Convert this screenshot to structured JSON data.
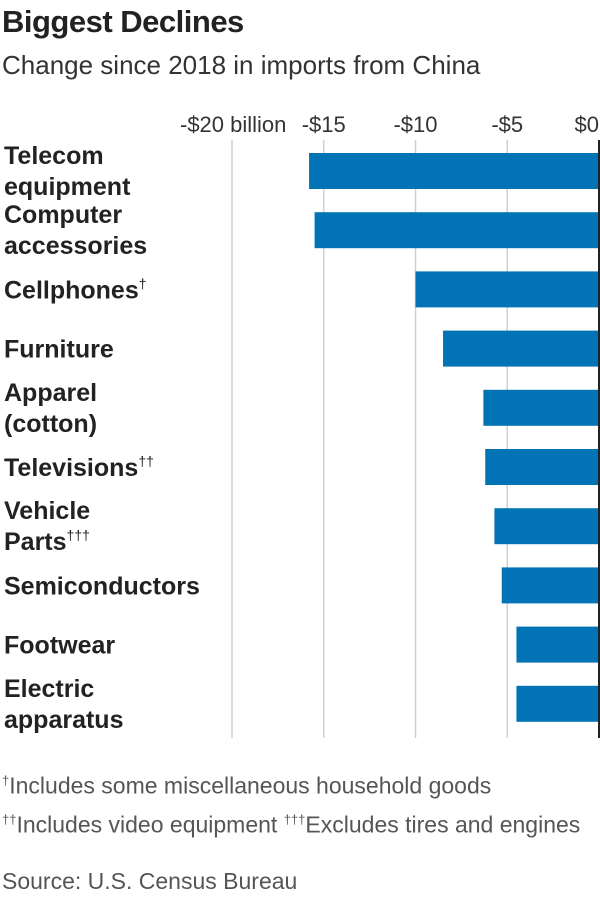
{
  "chart_data": {
    "type": "bar",
    "orientation": "horizontal",
    "title": "Biggest Declines",
    "subtitle": "Change since 2018 in imports from China",
    "categories": [
      {
        "lines": [
          "Telecom",
          "equipment"
        ],
        "mark": ""
      },
      {
        "lines": [
          "Computer",
          "accessories"
        ],
        "mark": ""
      },
      {
        "lines": [
          "Cellphones"
        ],
        "mark": "†"
      },
      {
        "lines": [
          "Furniture"
        ],
        "mark": ""
      },
      {
        "lines": [
          "Apparel",
          "(cotton)"
        ],
        "mark": ""
      },
      {
        "lines": [
          "Televisions"
        ],
        "mark": "††"
      },
      {
        "lines": [
          "Vehicle",
          "Parts"
        ],
        "mark": "†††"
      },
      {
        "lines": [
          "Semiconductors"
        ],
        "mark": ""
      },
      {
        "lines": [
          "Footwear"
        ],
        "mark": ""
      },
      {
        "lines": [
          "Electric",
          "apparatus"
        ],
        "mark": ""
      }
    ],
    "values": [
      -15.8,
      -15.5,
      -10.0,
      -8.5,
      -6.3,
      -6.2,
      -5.7,
      -5.3,
      -4.5,
      -4.5
    ],
    "xlim": [
      -20,
      0
    ],
    "ticks": [
      {
        "value": -20,
        "label": "-$20 billion"
      },
      {
        "value": -15,
        "label": "-$15"
      },
      {
        "value": -10,
        "label": "-$10"
      },
      {
        "value": -5,
        "label": "-$5"
      },
      {
        "value": 0,
        "label": "$0"
      }
    ],
    "bar_color": "#0274b6",
    "grid": true
  },
  "notes": {
    "note1_mark": "†",
    "note1_text": "Includes some miscellaneous household goods",
    "note2_mark": "††",
    "note2_text": "Includes video equipment ",
    "note3_mark": "†††",
    "note3_text": "Excludes tires and engines"
  },
  "source": "Source: U.S. Census Bureau"
}
